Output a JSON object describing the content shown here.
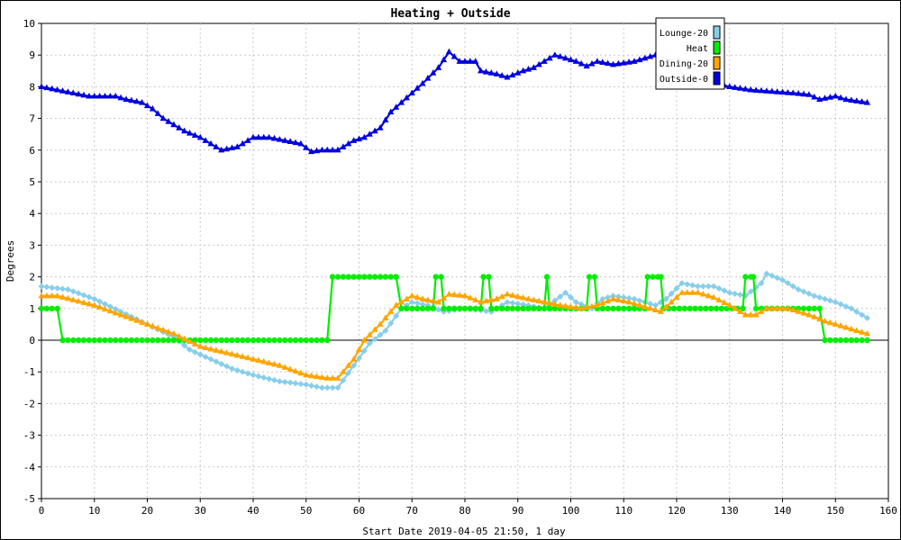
{
  "chart_data": {
    "type": "line",
    "title": "Heating + Outside",
    "xlabel": "Start Date 2019-04-05 21:50, 1 day",
    "ylabel": "Degrees",
    "xlim": [
      0,
      160
    ],
    "ylim": [
      -5,
      10
    ],
    "x_ticks": [
      0,
      10,
      20,
      30,
      40,
      50,
      60,
      70,
      80,
      90,
      100,
      110,
      120,
      130,
      140,
      150,
      160
    ],
    "y_ticks": [
      -5,
      -4,
      -3,
      -2,
      -1,
      0,
      1,
      2,
      3,
      4,
      5,
      6,
      7,
      8,
      9,
      10
    ],
    "grid": true,
    "legend_position": "top-right",
    "legend": [
      "Lounge-20",
      "Heat",
      "Dining-20",
      "Outside-0"
    ],
    "series": [
      {
        "name": "Lounge-20",
        "color": "#87ceeb",
        "marker": "diamond",
        "points": [
          [
            0,
            1.7
          ],
          [
            5,
            1.6
          ],
          [
            10,
            1.3
          ],
          [
            15,
            0.9
          ],
          [
            20,
            0.5
          ],
          [
            25,
            0.1
          ],
          [
            28,
            -0.3
          ],
          [
            32,
            -0.6
          ],
          [
            36,
            -0.9
          ],
          [
            40,
            -1.1
          ],
          [
            45,
            -1.3
          ],
          [
            50,
            -1.4
          ],
          [
            53,
            -1.5
          ],
          [
            56,
            -1.5
          ],
          [
            59,
            -0.8
          ],
          [
            62,
            -0.1
          ],
          [
            65,
            0.3
          ],
          [
            68,
            1.0
          ],
          [
            70,
            1.2
          ],
          [
            73,
            1.1
          ],
          [
            76,
            0.9
          ],
          [
            80,
            1.0
          ],
          [
            85,
            0.9
          ],
          [
            88,
            1.2
          ],
          [
            92,
            1.1
          ],
          [
            95,
            1.0
          ],
          [
            99,
            1.5
          ],
          [
            101,
            1.2
          ],
          [
            104,
            1.0
          ],
          [
            106,
            1.3
          ],
          [
            108,
            1.4
          ],
          [
            112,
            1.3
          ],
          [
            116,
            1.1
          ],
          [
            118,
            1.3
          ],
          [
            121,
            1.8
          ],
          [
            124,
            1.7
          ],
          [
            127,
            1.7
          ],
          [
            130,
            1.5
          ],
          [
            133,
            1.4
          ],
          [
            136,
            1.8
          ],
          [
            137,
            2.1
          ],
          [
            140,
            1.9
          ],
          [
            143,
            1.6
          ],
          [
            146,
            1.4
          ],
          [
            150,
            1.2
          ],
          [
            153,
            1.0
          ],
          [
            156,
            0.7
          ]
        ]
      },
      {
        "name": "Heat",
        "color": "#00ee00",
        "marker": "circle",
        "points": [
          [
            0,
            1
          ],
          [
            3,
            1
          ],
          [
            4,
            0
          ],
          [
            54,
            0
          ],
          [
            55,
            2
          ],
          [
            67,
            2
          ],
          [
            68,
            1
          ],
          [
            74,
            1
          ],
          [
            74.5,
            2
          ],
          [
            75.5,
            2
          ],
          [
            76,
            1
          ],
          [
            83,
            1
          ],
          [
            83.5,
            2
          ],
          [
            84.5,
            2
          ],
          [
            85,
            1
          ],
          [
            95,
            1
          ],
          [
            95.5,
            2
          ],
          [
            96,
            1
          ],
          [
            103,
            1
          ],
          [
            103.5,
            2
          ],
          [
            104.5,
            2
          ],
          [
            105,
            1
          ],
          [
            114,
            1
          ],
          [
            114.5,
            2
          ],
          [
            117,
            2
          ],
          [
            117.5,
            1
          ],
          [
            132.5,
            1
          ],
          [
            133,
            2
          ],
          [
            134.5,
            2
          ],
          [
            135,
            1
          ],
          [
            147,
            1
          ],
          [
            148,
            0
          ],
          [
            156,
            0
          ]
        ]
      },
      {
        "name": "Dining-20",
        "color": "#ffa500",
        "marker": "triangle",
        "points": [
          [
            0,
            1.4
          ],
          [
            3,
            1.4
          ],
          [
            10,
            1.1
          ],
          [
            15,
            0.8
          ],
          [
            20,
            0.5
          ],
          [
            25,
            0.2
          ],
          [
            30,
            -0.2
          ],
          [
            35,
            -0.4
          ],
          [
            40,
            -0.6
          ],
          [
            45,
            -0.8
          ],
          [
            50,
            -1.1
          ],
          [
            54,
            -1.2
          ],
          [
            56,
            -1.2
          ],
          [
            59,
            -0.6
          ],
          [
            61,
            0.0
          ],
          [
            64,
            0.5
          ],
          [
            67,
            1.1
          ],
          [
            70,
            1.4
          ],
          [
            72,
            1.3
          ],
          [
            75,
            1.2
          ],
          [
            77,
            1.45
          ],
          [
            80,
            1.4
          ],
          [
            83,
            1.2
          ],
          [
            86,
            1.3
          ],
          [
            88,
            1.45
          ],
          [
            92,
            1.3
          ],
          [
            95,
            1.2
          ],
          [
            98,
            1.1
          ],
          [
            102,
            1.0
          ],
          [
            105,
            1.1
          ],
          [
            108,
            1.3
          ],
          [
            111,
            1.2
          ],
          [
            115,
            1.0
          ],
          [
            117,
            0.9
          ],
          [
            119,
            1.2
          ],
          [
            121,
            1.5
          ],
          [
            124,
            1.5
          ],
          [
            127,
            1.35
          ],
          [
            130,
            1.1
          ],
          [
            133,
            0.8
          ],
          [
            135,
            0.8
          ],
          [
            137,
            1.0
          ],
          [
            141,
            1.0
          ],
          [
            145,
            0.8
          ],
          [
            148,
            0.6
          ],
          [
            151,
            0.45
          ],
          [
            154,
            0.3
          ],
          [
            156,
            0.2
          ]
        ]
      },
      {
        "name": "Outside-0",
        "color": "#0000dd",
        "marker": "triangle",
        "points": [
          [
            0,
            8.0
          ],
          [
            3,
            7.9
          ],
          [
            6,
            7.8
          ],
          [
            9,
            7.7
          ],
          [
            12,
            7.7
          ],
          [
            14,
            7.7
          ],
          [
            16,
            7.6
          ],
          [
            19,
            7.5
          ],
          [
            21,
            7.3
          ],
          [
            23,
            7.0
          ],
          [
            25,
            6.8
          ],
          [
            27,
            6.6
          ],
          [
            30,
            6.4
          ],
          [
            32,
            6.2
          ],
          [
            34,
            6.0
          ],
          [
            37,
            6.1
          ],
          [
            40,
            6.4
          ],
          [
            43,
            6.4
          ],
          [
            46,
            6.3
          ],
          [
            49,
            6.2
          ],
          [
            51,
            5.95
          ],
          [
            53,
            6.0
          ],
          [
            56,
            6.0
          ],
          [
            59,
            6.3
          ],
          [
            61,
            6.4
          ],
          [
            64,
            6.7
          ],
          [
            66,
            7.2
          ],
          [
            68,
            7.5
          ],
          [
            70,
            7.8
          ],
          [
            72,
            8.1
          ],
          [
            75,
            8.6
          ],
          [
            77,
            9.1
          ],
          [
            79,
            8.8
          ],
          [
            82,
            8.8
          ],
          [
            83,
            8.5
          ],
          [
            86,
            8.4
          ],
          [
            88,
            8.3
          ],
          [
            91,
            8.5
          ],
          [
            93,
            8.6
          ],
          [
            95,
            8.8
          ],
          [
            97,
            9.0
          ],
          [
            99,
            8.9
          ],
          [
            101,
            8.8
          ],
          [
            103,
            8.65
          ],
          [
            105,
            8.8
          ],
          [
            108,
            8.7
          ],
          [
            110,
            8.75
          ],
          [
            112,
            8.8
          ],
          [
            114,
            8.9
          ],
          [
            116,
            9.0
          ],
          [
            120,
            8.5
          ],
          [
            125,
            8.2
          ],
          [
            130,
            8.0
          ],
          [
            134,
            7.9
          ],
          [
            138,
            7.85
          ],
          [
            142,
            7.8
          ],
          [
            145,
            7.75
          ],
          [
            147,
            7.6
          ],
          [
            150,
            7.7
          ],
          [
            152,
            7.6
          ],
          [
            156,
            7.5
          ]
        ]
      }
    ]
  }
}
